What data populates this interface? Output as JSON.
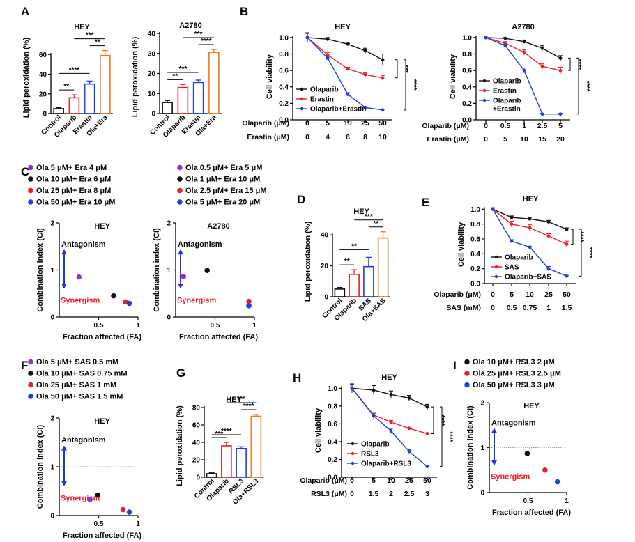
{
  "colors": {
    "black": "#111111",
    "red": "#e8202a",
    "blue": "#1f3fe0",
    "orange": "#f07a1a",
    "purple": "#9a2fc9",
    "arrow": "#2233dd",
    "synergism": "#e8202a"
  },
  "panel_labels": [
    "A",
    "B",
    "C",
    "D",
    "E",
    "F",
    "G",
    "H",
    "I"
  ],
  "annotations": {
    "antagonism": "Antagonism",
    "synergism": "Synergism"
  },
  "chart_data": [
    {
      "id": "A1",
      "type": "bar",
      "panel": "A",
      "title": "HEY",
      "ylabel": "Lipid peroxidation (%)",
      "xlabel": "",
      "ylim": [
        0,
        80
      ],
      "yticks": [
        "0",
        "20",
        "40",
        "60"
      ],
      "categories": [
        "Control",
        "Olaparib",
        "Erastin",
        "Ola+Era"
      ],
      "values": [
        5,
        16,
        30,
        59
      ],
      "errors": [
        1,
        3,
        3,
        5
      ],
      "significance": [
        {
          "from": 0,
          "to": 1,
          "label": "**"
        },
        {
          "from": 0,
          "to": 2,
          "label": "****"
        },
        {
          "from": 1,
          "to": 3,
          "label": "***"
        },
        {
          "from": 2,
          "to": 3,
          "label": "**"
        }
      ]
    },
    {
      "id": "A2",
      "type": "bar",
      "panel": "A",
      "title": "A2780",
      "ylabel": "Lipid peroxidation (%)",
      "xlabel": "",
      "ylim": [
        0,
        40
      ],
      "yticks": [
        "0",
        "10",
        "20",
        "30",
        "40"
      ],
      "categories": [
        "Control",
        "Olaparib",
        "Erastin",
        "Ola+Era"
      ],
      "values": [
        5.5,
        13,
        15.5,
        30.5
      ],
      "errors": [
        1,
        1.5,
        1.2,
        1.5
      ],
      "significance": [
        {
          "from": 0,
          "to": 1,
          "label": "**"
        },
        {
          "from": 0,
          "to": 2,
          "label": "***"
        },
        {
          "from": 1,
          "to": 3,
          "label": "***"
        },
        {
          "from": 2,
          "to": 3,
          "label": "****"
        }
      ]
    },
    {
      "id": "B1",
      "type": "line",
      "panel": "B",
      "title": "HEY",
      "ylabel": "Cell viability",
      "xlabel": "",
      "ylim": [
        0,
        1.05
      ],
      "yticks": [
        "0.0",
        "0.2",
        "0.4",
        "0.6",
        "0.8",
        "1.0"
      ],
      "row_labels": [
        "Olaparib (μM)",
        "Erastin (μM)"
      ],
      "rows": [
        [
          "0",
          "5",
          "10",
          "25",
          "50"
        ],
        [
          "0",
          "4",
          "6",
          "8",
          "10"
        ]
      ],
      "series": [
        {
          "name": "Olaparib",
          "color": "black",
          "values": [
            1.0,
            0.98,
            0.92,
            0.84,
            0.73
          ],
          "errors": [
            0.05,
            0.02,
            0.01,
            0.03,
            0.07
          ]
        },
        {
          "name": "Erastin",
          "color": "red",
          "values": [
            1.0,
            0.79,
            0.62,
            0.55,
            0.51
          ],
          "errors": [
            0.06,
            0.03,
            0.02,
            0.02,
            0.03
          ]
        },
        {
          "name": "Olaparib+Erastin",
          "color": "blue",
          "values": [
            1.0,
            0.75,
            0.31,
            0.15,
            0.12
          ],
          "errors": [
            0.05,
            0.02,
            0.02,
            0.01,
            0.01
          ]
        }
      ],
      "significance": [
        {
          "series": [
            0,
            1
          ],
          "label": "***"
        },
        {
          "series": [
            0,
            2
          ],
          "label": "****"
        }
      ]
    },
    {
      "id": "B2",
      "type": "line",
      "panel": "B",
      "title": "A2780",
      "ylabel": "Cell viability",
      "xlabel": "",
      "ylim": [
        0,
        1.05
      ],
      "yticks": [
        "0.0",
        "0.2",
        "0.4",
        "0.6",
        "0.8",
        "1.0"
      ],
      "row_labels": [
        "Olaparib (μM)",
        "Erastin (μM)"
      ],
      "rows": [
        [
          "0",
          "0.5",
          "1",
          "2.5",
          "5"
        ],
        [
          "0",
          "5",
          "10",
          "15",
          "20"
        ]
      ],
      "series": [
        {
          "name": "Olaparib",
          "color": "black",
          "values": [
            1.0,
            0.99,
            0.95,
            0.87,
            0.75
          ],
          "errors": [
            0.02,
            0.01,
            0.02,
            0.03,
            0.03
          ]
        },
        {
          "name": "Erastin",
          "color": "red",
          "values": [
            1.0,
            0.93,
            0.82,
            0.65,
            0.6
          ],
          "errors": [
            0.02,
            0.02,
            0.03,
            0.03,
            0.04
          ]
        },
        {
          "name": "Olaparib\n+Erastin",
          "color": "blue",
          "values": [
            1.0,
            0.9,
            0.6,
            0.07,
            0.07
          ],
          "errors": [
            0.02,
            0.02,
            0.03,
            0.01,
            0.01
          ]
        }
      ],
      "significance": [
        {
          "series": [
            0,
            1
          ],
          "label": "****"
        },
        {
          "series": [
            0,
            2
          ],
          "label": "****"
        }
      ]
    },
    {
      "id": "C1",
      "type": "scatter",
      "panel": "C",
      "title": "HEY",
      "xlabel": "Fraction affected (FA)",
      "ylabel": "Combination index (CI)",
      "xlim": [
        0,
        1
      ],
      "ylim": [
        0,
        2
      ],
      "xticks": [
        "0.5",
        "1"
      ],
      "yticks": [
        "0",
        "1",
        "2"
      ],
      "legend": [
        {
          "label": "Ola 5 μM+ Era 4 μM",
          "color": "purple"
        },
        {
          "label": "Ola 10 μM+ Era 6 μM",
          "color": "black"
        },
        {
          "label": "Ola 25 μM+ Era 8 μM",
          "color": "red"
        },
        {
          "label": "Ola 50 μM+ Era 10 μM",
          "color": "blue"
        }
      ],
      "points": [
        {
          "x": 0.25,
          "y": 0.85,
          "color": "purple"
        },
        {
          "x": 0.69,
          "y": 0.45,
          "color": "black"
        },
        {
          "x": 0.84,
          "y": 0.32,
          "color": "red"
        },
        {
          "x": 0.89,
          "y": 0.29,
          "color": "blue"
        }
      ]
    },
    {
      "id": "C2",
      "type": "scatter",
      "panel": "C",
      "title": "A2780",
      "xlabel": "Fraction affected (FA)",
      "ylabel": "Combination index (CI)",
      "xlim": [
        0,
        1
      ],
      "ylim": [
        0,
        2
      ],
      "xticks": [
        "0.5",
        "1"
      ],
      "yticks": [
        "0",
        "1",
        "2"
      ],
      "legend": [
        {
          "label": "Ola 0.5 μM+ Era 5 μM",
          "color": "purple"
        },
        {
          "label": "Ola 1 μM+ Era 10 μM",
          "color": "black"
        },
        {
          "label": "Ola 2.5 μM+ Era 15 μM",
          "color": "red"
        },
        {
          "label": "Ola 5 μM+ Era 20 μM",
          "color": "blue"
        }
      ],
      "points": [
        {
          "x": 0.1,
          "y": 0.86,
          "color": "purple"
        },
        {
          "x": 0.4,
          "y": 0.99,
          "color": "black"
        },
        {
          "x": 0.93,
          "y": 0.33,
          "color": "red"
        },
        {
          "x": 0.93,
          "y": 0.24,
          "color": "blue"
        }
      ]
    },
    {
      "id": "D",
      "type": "bar",
      "panel": "D",
      "title": "HEY",
      "ylabel": "Lipid peroxidation (%)",
      "xlabel": "",
      "ylim": [
        0,
        50
      ],
      "yticks": [
        "0",
        "20",
        "40"
      ],
      "categories": [
        "Control",
        "Olaparib",
        "SAS",
        "Ola+SAS"
      ],
      "values": [
        5,
        14.5,
        19.5,
        38
      ],
      "errors": [
        1,
        3,
        6,
        4
      ],
      "significance": [
        {
          "from": 0,
          "to": 1,
          "label": "**"
        },
        {
          "from": 0,
          "to": 2,
          "label": "**"
        },
        {
          "from": 1,
          "to": 3,
          "label": "***"
        },
        {
          "from": 2,
          "to": 3,
          "label": "**"
        }
      ]
    },
    {
      "id": "E",
      "type": "line",
      "panel": "E",
      "title": "HEY",
      "ylabel": "Cell viability",
      "xlabel": "",
      "ylim": [
        0,
        1.05
      ],
      "yticks": [
        "0.0",
        "0.2",
        "0.4",
        "0.6",
        "0.8",
        "1.0"
      ],
      "row_labels": [
        "Olaparib (μM)",
        "SAS (mM)"
      ],
      "rows": [
        [
          "0",
          "5",
          "10",
          "25",
          "50"
        ],
        [
          "0",
          "0.5",
          "0.75",
          "1",
          "1.5"
        ]
      ],
      "series": [
        {
          "name": "Olaparib",
          "color": "black",
          "values": [
            1.0,
            0.89,
            0.87,
            0.83,
            0.73
          ],
          "errors": [
            0.02,
            0.02,
            0.02,
            0.02,
            0.02
          ]
        },
        {
          "name": "SAS",
          "color": "red",
          "values": [
            1.0,
            0.8,
            0.75,
            0.64,
            0.53
          ],
          "errors": [
            0.02,
            0.04,
            0.04,
            0.03,
            0.04
          ]
        },
        {
          "name": "Olaparib+SAS",
          "color": "blue",
          "values": [
            1.0,
            0.57,
            0.49,
            0.2,
            0.1
          ],
          "errors": [
            0.02,
            0.02,
            0.01,
            0.03,
            0.01
          ]
        }
      ],
      "significance": [
        {
          "series": [
            0,
            1
          ],
          "label": "****"
        },
        {
          "series": [
            0,
            2
          ],
          "label": "****"
        }
      ]
    },
    {
      "id": "F",
      "type": "scatter",
      "panel": "F",
      "title": "HEY",
      "xlabel": "Fraction affected (FA)",
      "ylabel": "Combination index (CI)",
      "xlim": [
        0,
        1
      ],
      "ylim": [
        0,
        2
      ],
      "xticks": [
        "0.5",
        "1"
      ],
      "yticks": [
        "0",
        "1",
        "2"
      ],
      "legend": [
        {
          "label": "Ola 5 μM+ SAS 0.5 mM",
          "color": "purple"
        },
        {
          "label": "Ola 10 μM+ SAS 0.75 mM",
          "color": "black"
        },
        {
          "label": "Ola 25 μM+ SAS 1 mM",
          "color": "red"
        },
        {
          "label": "Ola 50 μM+ SAS 1.5 mM",
          "color": "blue"
        }
      ],
      "points": [
        {
          "x": 0.39,
          "y": 0.33,
          "color": "purple"
        },
        {
          "x": 0.49,
          "y": 0.42,
          "color": "black"
        },
        {
          "x": 0.81,
          "y": 0.12,
          "color": "red"
        },
        {
          "x": 0.89,
          "y": 0.07,
          "color": "blue"
        }
      ]
    },
    {
      "id": "G",
      "type": "bar",
      "panel": "G",
      "title": "HEY",
      "ylabel": "Lipid peroxidation (%)",
      "xlabel": "",
      "ylim": [
        0,
        80
      ],
      "yticks": [
        "0",
        "20",
        "40",
        "60",
        "80"
      ],
      "categories": [
        "Control",
        "Olaparib",
        "RSL3",
        "Ola+RSL3"
      ],
      "values": [
        4,
        36,
        33,
        70
      ],
      "errors": [
        1,
        4,
        2,
        2
      ],
      "significance": [
        {
          "from": 0,
          "to": 1,
          "label": "***"
        },
        {
          "from": 0,
          "to": 2,
          "label": "****"
        },
        {
          "from": 1,
          "to": 3,
          "label": "***"
        },
        {
          "from": 2,
          "to": 3,
          "label": "****"
        }
      ]
    },
    {
      "id": "H",
      "type": "line",
      "panel": "H",
      "title": "HEY",
      "ylabel": "Cell viability",
      "xlabel": "",
      "ylim": [
        0,
        1.05
      ],
      "yticks": [
        "0.0",
        "0.2",
        "0.4",
        "0.6",
        "0.8",
        "1.0"
      ],
      "row_labels": [
        "Olaparib (μM)",
        "RSL3 (μM)"
      ],
      "rows": [
        [
          "0",
          "5",
          "10",
          "25",
          "50"
        ],
        [
          "0",
          "1.5",
          "2",
          "2.5",
          "3"
        ]
      ],
      "series": [
        {
          "name": "Olaparib",
          "color": "black",
          "values": [
            1.0,
            0.98,
            0.93,
            0.89,
            0.79
          ],
          "errors": [
            0.05,
            0.05,
            0.04,
            0.03,
            0.03
          ]
        },
        {
          "name": "RSL3",
          "color": "red",
          "values": [
            1.0,
            0.7,
            0.62,
            0.55,
            0.49
          ],
          "errors": [
            0.04,
            0.02,
            0.02,
            0.01,
            0.01
          ]
        },
        {
          "name": "Olaparib+RSL3",
          "color": "blue",
          "values": [
            1.0,
            0.69,
            0.52,
            0.29,
            0.12
          ],
          "errors": [
            0.04,
            0.03,
            0.03,
            0.02,
            0.01
          ]
        }
      ],
      "significance": [
        {
          "series": [
            0,
            1
          ],
          "label": "****"
        },
        {
          "series": [
            0,
            2
          ],
          "label": "****"
        }
      ]
    },
    {
      "id": "I",
      "type": "scatter",
      "panel": "I",
      "title": "HEY",
      "xlabel": "Fraction affected (FA)",
      "ylabel": "Combination index (CI)",
      "xlim": [
        0,
        1
      ],
      "ylim": [
        0,
        2
      ],
      "xticks": [
        "0.5",
        "1"
      ],
      "yticks": [
        "0",
        "1",
        "2"
      ],
      "legend": [
        {
          "label": "Ola 10 μM+ RSL3 2 μM",
          "color": "black"
        },
        {
          "label": "Ola 25 μM+ RSL3 2.5 μM",
          "color": "red"
        },
        {
          "label": "Ola 50 μM+ RSL3 3 μM",
          "color": "blue"
        }
      ],
      "points": [
        {
          "x": 0.49,
          "y": 0.87,
          "color": "black"
        },
        {
          "x": 0.72,
          "y": 0.5,
          "color": "red"
        },
        {
          "x": 0.88,
          "y": 0.24,
          "color": "blue"
        }
      ]
    }
  ]
}
